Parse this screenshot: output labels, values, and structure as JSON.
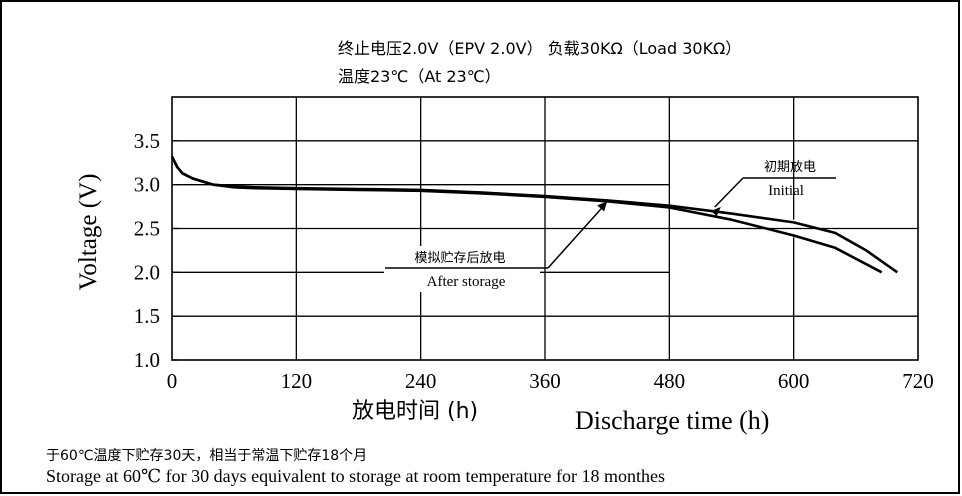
{
  "header": {
    "line1": "终止电压2.0V（EPV 2.0V） 负载30KΩ（Load 30KΩ）",
    "line2": "温度23℃（At 23℃）"
  },
  "footer": {
    "cn": "于60℃温度下贮存30天，相当于常温下贮存18个月",
    "en": "Storage at 60℃ for 30 days equivalent to storage at room temperature for 18 monthes"
  },
  "chart_data": {
    "type": "line",
    "title": "",
    "ylabel": "Voltage (V)",
    "xlabel_cn": "放电时间 (h)",
    "xlabel": "Discharge time (h)",
    "xlim": [
      0,
      720
    ],
    "ylim": [
      1.0,
      4.0
    ],
    "x_ticks": [
      0,
      120,
      240,
      360,
      480,
      600,
      720
    ],
    "y_ticks": [
      1.0,
      1.5,
      2.0,
      2.5,
      3.0,
      3.5
    ],
    "grid": true,
    "series": [
      {
        "name": "Initial",
        "name_cn": "初期放电",
        "color": "#000000",
        "x": [
          0,
          5,
          10,
          20,
          40,
          60,
          80,
          120,
          180,
          240,
          300,
          360,
          420,
          480,
          540,
          600,
          640,
          670,
          700
        ],
        "y": [
          3.32,
          3.2,
          3.13,
          3.07,
          3.0,
          2.98,
          2.97,
          2.96,
          2.95,
          2.94,
          2.91,
          2.87,
          2.82,
          2.76,
          2.67,
          2.57,
          2.45,
          2.25,
          2.0
        ]
      },
      {
        "name": "After storage",
        "name_cn": "模拟贮存后放电",
        "color": "#000000",
        "x": [
          0,
          5,
          10,
          20,
          40,
          60,
          80,
          120,
          180,
          240,
          300,
          360,
          420,
          480,
          540,
          600,
          640,
          685
        ],
        "y": [
          3.32,
          3.2,
          3.13,
          3.07,
          3.0,
          2.97,
          2.96,
          2.95,
          2.94,
          2.93,
          2.9,
          2.86,
          2.81,
          2.74,
          2.6,
          2.42,
          2.28,
          2.0
        ]
      }
    ],
    "annotations": [
      {
        "text_cn": "初期放电",
        "text": "Initial",
        "series": 0,
        "x": 520
      },
      {
        "text_cn": "模拟贮存后放电",
        "text": "After storage",
        "series": 1,
        "x": 420
      }
    ]
  }
}
